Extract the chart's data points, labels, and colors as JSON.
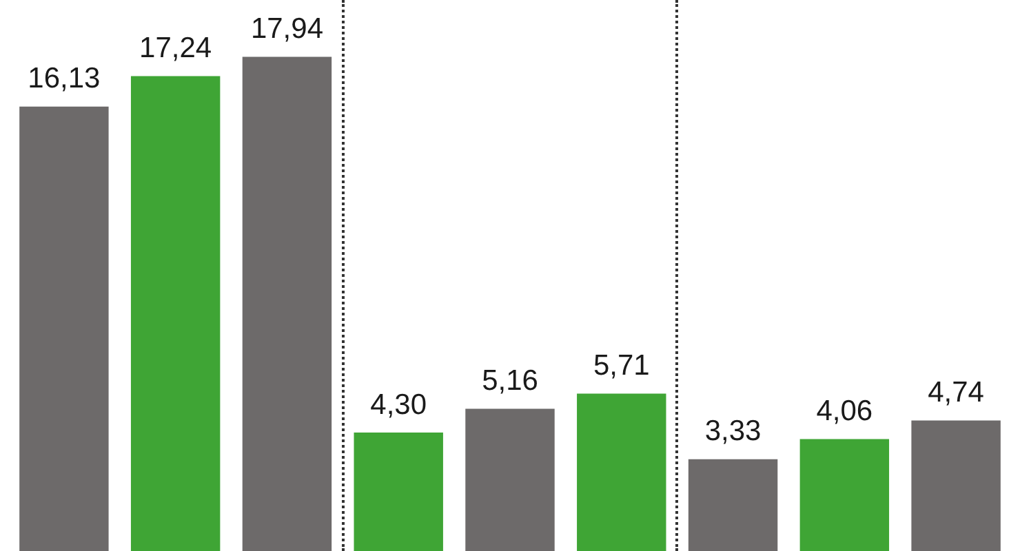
{
  "chart_data": {
    "type": "bar",
    "categories": [
      null,
      null,
      null,
      null,
      null,
      null,
      null,
      null,
      null
    ],
    "values": [
      16.13,
      17.24,
      17.94,
      4.3,
      5.16,
      5.71,
      3.33,
      4.06,
      4.74
    ],
    "colors": [
      "#6d6a6a",
      "#3fa535",
      "#6d6a6a",
      "#3fa535",
      "#6d6a6a",
      "#3fa535",
      "#6d6a6a",
      "#3fa535",
      "#6d6a6a"
    ],
    "value_labels": [
      "16,13",
      "17,24",
      "17,94",
      "4,30",
      "5,16",
      "5,71",
      "3,33",
      "4,06",
      "4,74"
    ],
    "tick_labels": false,
    "legend": false
  }
}
